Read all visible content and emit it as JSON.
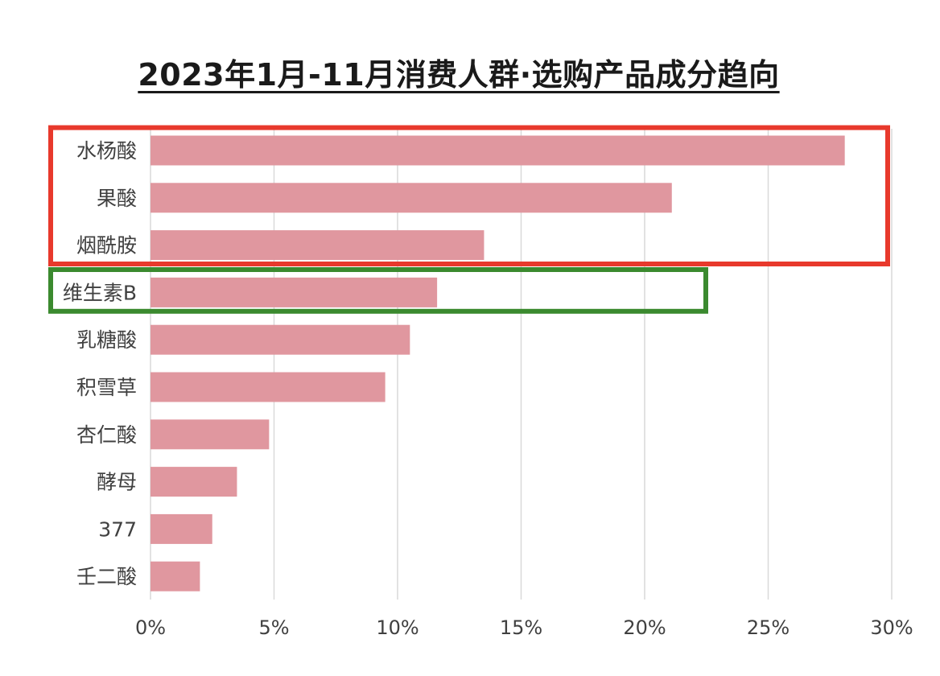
{
  "chart_data": {
    "type": "bar",
    "orientation": "horizontal",
    "title": "2023年1月-11月消费人群·选购产品成分趋向",
    "categories": [
      "水杨酸",
      "果酸",
      "烟酰胺",
      "维生素B",
      "乳糖酸",
      "积雪草",
      "杏仁酸",
      "酵母",
      "377",
      "壬二酸"
    ],
    "values": [
      28.1,
      21.1,
      13.5,
      11.6,
      10.5,
      9.5,
      4.8,
      3.5,
      2.5,
      2.0
    ],
    "xlim": [
      0,
      30
    ],
    "xticks": [
      0,
      5,
      10,
      15,
      20,
      25,
      30
    ],
    "tick_format": "%",
    "grid": "vertical",
    "bar_color": "#e0979f",
    "grid_color": "#d9d9d9",
    "label_color": "#404040",
    "highlights": [
      {
        "color": "#e8392c",
        "categories": [
          "水杨酸",
          "果酸",
          "烟酰胺"
        ]
      },
      {
        "color": "#3b8a2f",
        "categories": [
          "维生素B"
        ]
      }
    ]
  }
}
